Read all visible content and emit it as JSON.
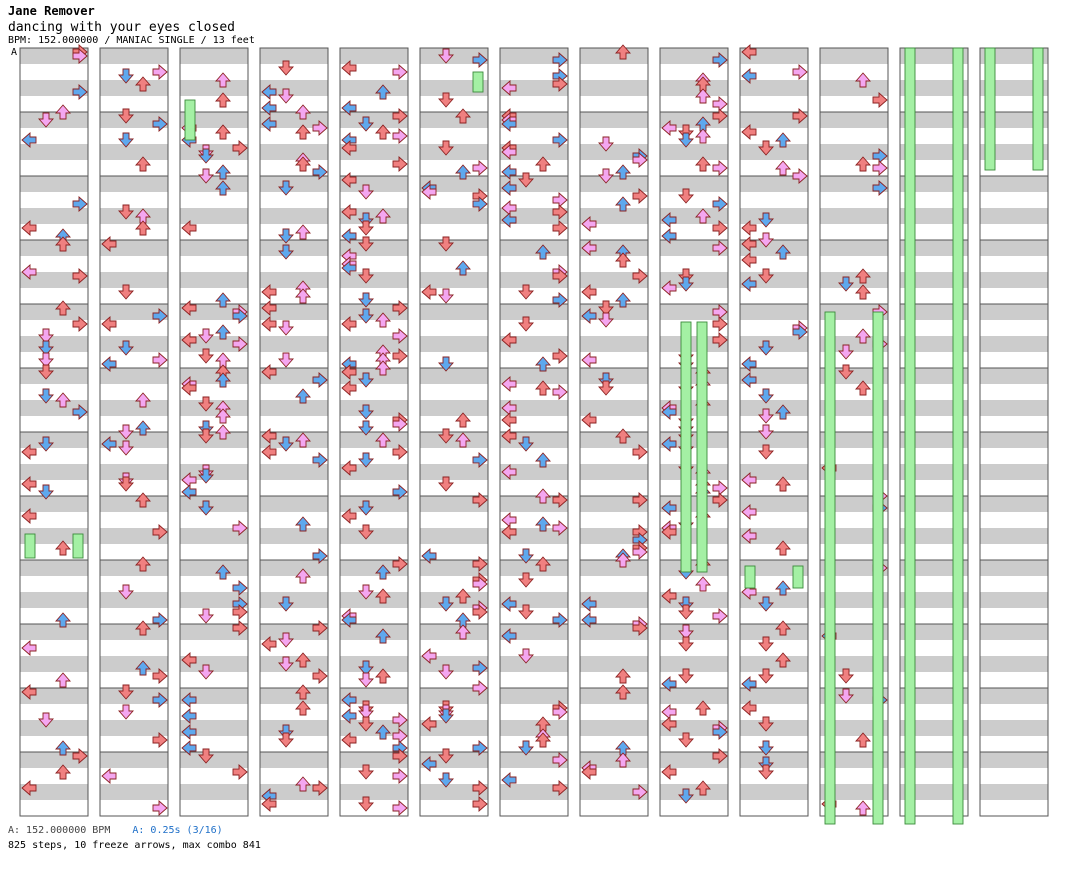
{
  "header": {
    "artist": "Jane Remover",
    "title": "dancing with your eyes closed",
    "info": "BPM: 152.000000 / MANIAC SINGLE / 13 feet",
    "start_marker": "A"
  },
  "footer": {
    "bpm": "A: 152.000000 BPM",
    "offset": "A: 0.25s (3/16)",
    "stats": "825 steps, 10 freeze arrows, max combo 841"
  },
  "colors": {
    "stripe": "#cccccc",
    "quarter_note": "#f08080",
    "eighth_note": "#5ea8ee",
    "sixteenth_note": "#f4a6f0",
    "freeze": "#a4f0a4"
  },
  "chart_data": {
    "type": "step-chart",
    "columns": 13,
    "lanes": [
      "left",
      "down",
      "up",
      "right"
    ],
    "measures_per_column": 12,
    "steps": 825,
    "freeze_arrows": 10,
    "max_combo": 841
  }
}
